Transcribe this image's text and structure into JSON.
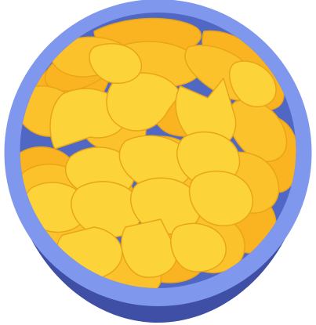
{
  "illustration": {
    "subject": "chips-bowl-icon",
    "colors": {
      "bowl_outer": "#3e4fa5",
      "bowl_rim": "#7f97ed",
      "bowl_inner": "#5067c4",
      "chip_dark": "#fbb421",
      "chip_mid": "#fcc22c",
      "chip_light": "#fdd33a",
      "chip_outline": "#e8a51a"
    }
  }
}
